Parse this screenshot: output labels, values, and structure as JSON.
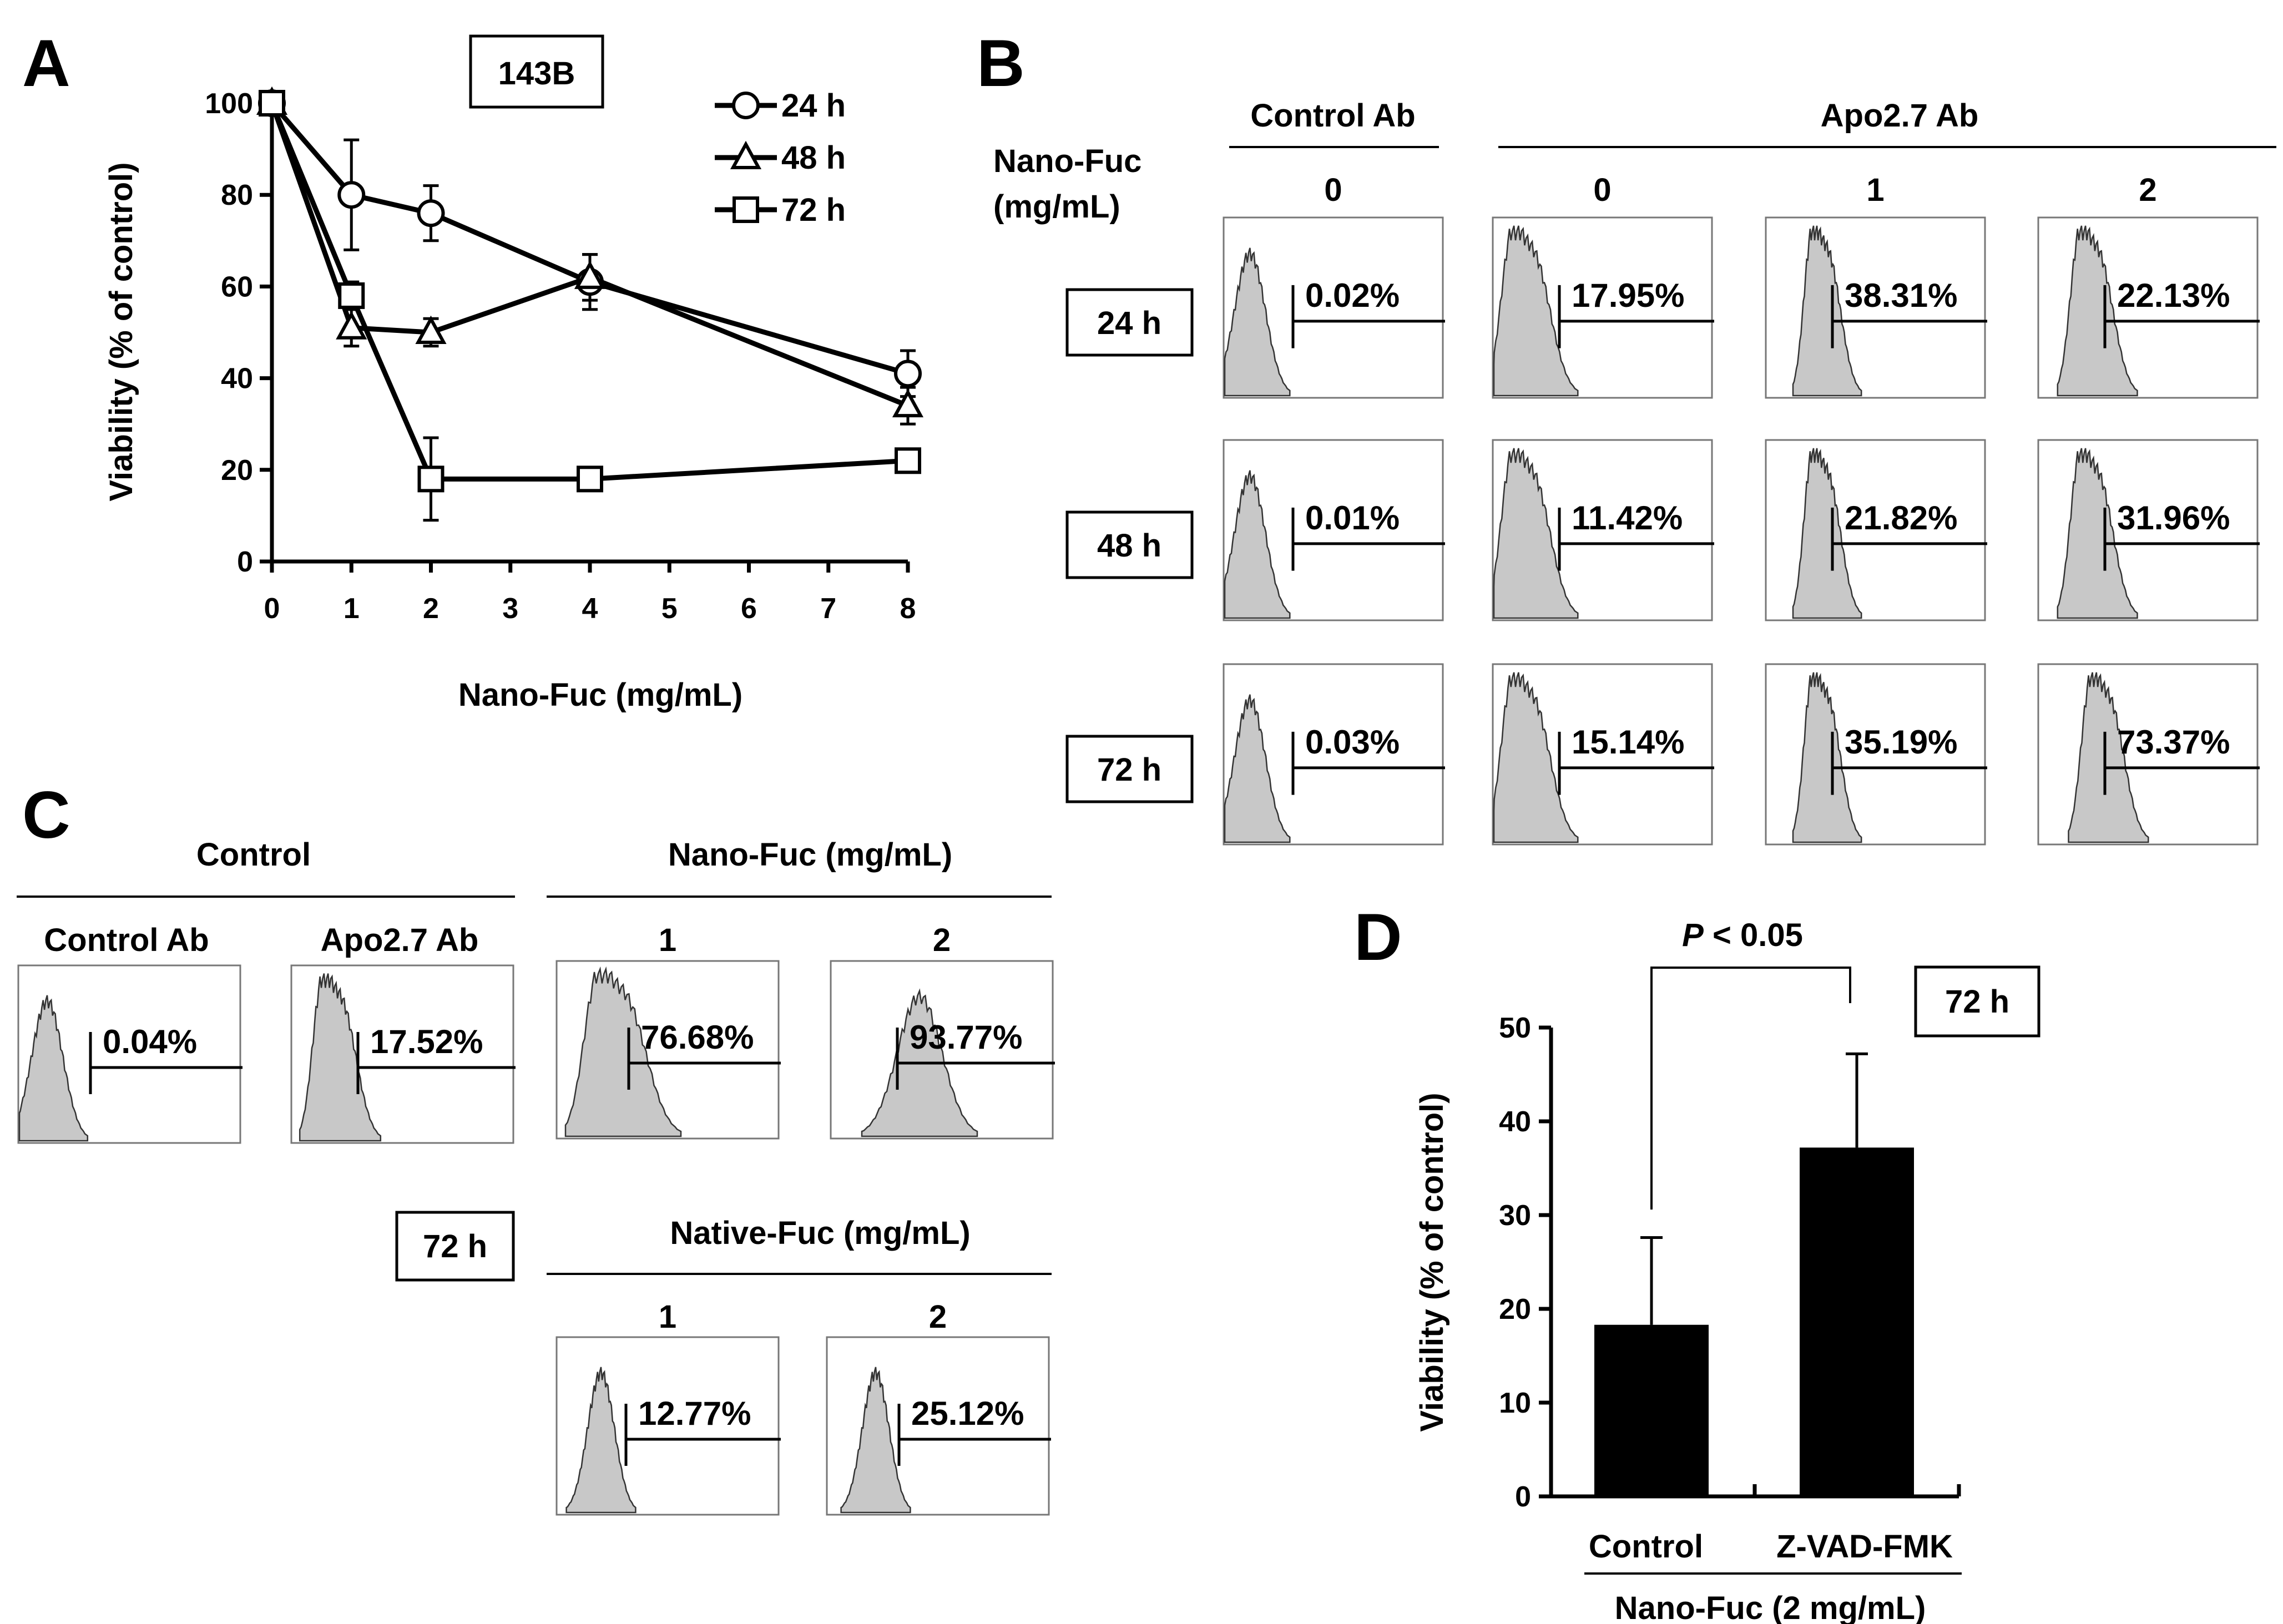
{
  "panels": {
    "A": "A",
    "B": "B",
    "C": "C",
    "D": "D"
  },
  "chart_data": [
    {
      "id": "A",
      "type": "line",
      "title": "143B",
      "xlabel": "Nano-Fuc (mg/mL)",
      "ylabel": "Viability (% of control)",
      "xlim": [
        0,
        8
      ],
      "ylim": [
        0,
        100
      ],
      "xticks": [
        "0",
        "1",
        "2",
        "3",
        "4",
        "5",
        "6",
        "7",
        "8"
      ],
      "yticks": [
        "0",
        "20",
        "40",
        "60",
        "80",
        "100"
      ],
      "x": [
        0,
        1,
        2,
        4,
        8
      ],
      "series": [
        {
          "name": "24 h",
          "marker": "circle",
          "values": [
            100,
            80,
            76,
            61,
            41
          ],
          "errors": [
            0,
            12,
            6,
            6,
            5
          ]
        },
        {
          "name": "48 h",
          "marker": "triangle",
          "values": [
            100,
            51,
            50,
            62,
            34
          ],
          "errors": [
            0,
            4,
            3,
            5,
            4
          ]
        },
        {
          "name": "72 h",
          "marker": "square",
          "values": [
            100,
            58,
            18,
            18,
            22
          ],
          "errors": [
            0,
            3,
            9,
            2,
            1
          ]
        }
      ],
      "legend": "top-right"
    },
    {
      "id": "B",
      "type": "histogram-grid",
      "row_header": "Nano-Fuc\n(mg/mL)",
      "row_header_line1": "Nano-Fuc",
      "row_header_line2": "(mg/mL)",
      "groups": [
        "Control Ab",
        "Apo2.7 Ab"
      ],
      "doses": [
        "0",
        "0",
        "1",
        "2"
      ],
      "rows": [
        {
          "time": "24 h",
          "percents": [
            "0.02%",
            "17.95%",
            "38.31%",
            "22.13%"
          ]
        },
        {
          "time": "48 h",
          "percents": [
            "0.01%",
            "11.42%",
            "21.82%",
            "31.96%"
          ]
        },
        {
          "time": "72 h",
          "percents": [
            "0.03%",
            "15.14%",
            "35.19%",
            "73.37%"
          ]
        }
      ]
    },
    {
      "id": "C",
      "type": "histogram-grid",
      "time": "72 h",
      "control_header": "Control",
      "control_items": [
        {
          "label": "Control Ab",
          "percent": "0.04%"
        },
        {
          "label": "Apo2.7 Ab",
          "percent": "17.52%"
        }
      ],
      "nano_header": "Nano-Fuc (mg/mL)",
      "nano_items": [
        {
          "dose": "1",
          "percent": "76.68%"
        },
        {
          "dose": "2",
          "percent": "93.77%"
        }
      ],
      "native_header": "Native-Fuc (mg/mL)",
      "native_items": [
        {
          "dose": "1",
          "percent": "12.77%"
        },
        {
          "dose": "2",
          "percent": "25.12%"
        }
      ]
    },
    {
      "id": "D",
      "type": "bar",
      "time": "72 h",
      "categories": [
        "Control",
        "Z-VAD-FMK"
      ],
      "values": [
        18.3,
        37.2
      ],
      "errors": [
        9.3,
        10.0
      ],
      "ylabel": "Viability (% of control)",
      "group_label": "Nano-Fuc (2 mg/mL)",
      "ylim": [
        0,
        50
      ],
      "yticks": [
        "0",
        "10",
        "20",
        "30",
        "40",
        "50"
      ],
      "significance": {
        "italic": "P",
        "text": " < 0.05"
      }
    }
  ]
}
